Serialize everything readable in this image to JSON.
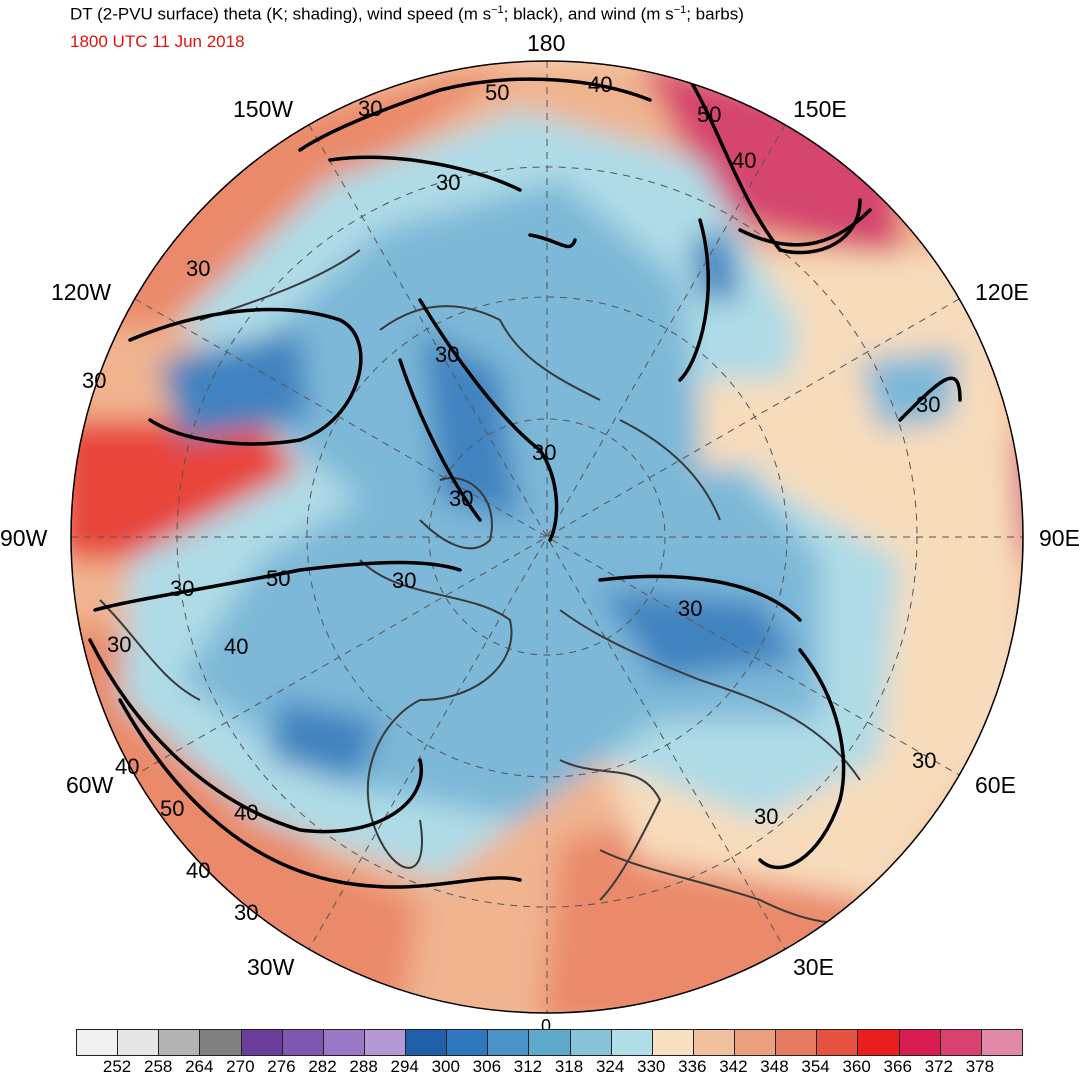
{
  "header": {
    "title_main": "DT (2-PVU surface) theta (K; shading), wind speed (m s",
    "title_mid": "; black), and wind (m s",
    "title_end": "; barbs)",
    "exponent": "−1",
    "valid_time": "1800 UTC 11 Jun 2018"
  },
  "map": {
    "projection": "north-polar-stereographic",
    "longitude_labels": {
      "lon_180": "180",
      "lon_150W": "150W",
      "lon_150E": "150E",
      "lon_120W": "120W",
      "lon_120E": "120E",
      "lon_90W": "90W",
      "lon_90E": "90E",
      "lon_60W": "60W",
      "lon_60E": "60E",
      "lon_30W": "30W",
      "lon_30E": "30E",
      "lon_0": "0"
    },
    "wind_contour_labels": [
      "30",
      "40",
      "50"
    ],
    "colors": {
      "cold_core": "#3f83c0",
      "cool": "#7db8d8",
      "pale_blue": "#aedbe6",
      "cream": "#f7dcbc",
      "tan": "#f0b48f",
      "salmon": "#ea8a6b",
      "red": "#e8453b",
      "magenta": "#d6456e",
      "pink": "#e48aa4",
      "coast": "#3a3a3a",
      "contour": "#000000"
    }
  },
  "colorbar": {
    "units": "K",
    "ticks": [
      "252",
      "258",
      "264",
      "270",
      "276",
      "282",
      "288",
      "294",
      "300",
      "306",
      "312",
      "318",
      "324",
      "330",
      "336",
      "342",
      "348",
      "354",
      "360",
      "366",
      "372",
      "378"
    ],
    "colors": [
      "#e5e5e5",
      "#b3b3b3",
      "#808080",
      "#6a3d9a",
      "#7e57b3",
      "#9b78c7",
      "#b39ad6",
      "#1f5fa8",
      "#2f78bd",
      "#4a93c9",
      "#5fa9cc",
      "#86c3d9",
      "#b1dde6",
      "#f8e1c2",
      "#f1c09e",
      "#eb9f7f",
      "#e57c62",
      "#e55340",
      "#ea1e1e",
      "#d81e50",
      "#d9426f",
      "#e289a8"
    ]
  }
}
